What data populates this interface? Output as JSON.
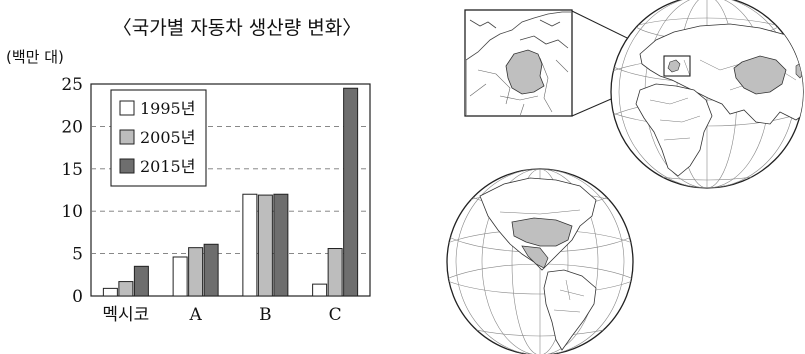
{
  "chart_data": {
    "type": "bar",
    "title": "〈국가별 자동차 생산량 변화〉",
    "ylabel": "(백만 대)",
    "xlabel": "",
    "ylim": [
      0,
      25
    ],
    "yticks": [
      0,
      5,
      10,
      15,
      20,
      25
    ],
    "grid": "dashed-horizontal",
    "legend_position": "top-left",
    "categories": [
      "멕시코",
      "A",
      "B",
      "C"
    ],
    "series": [
      {
        "name": "1995년",
        "color": "#ffffff",
        "values": [
          0.9,
          4.6,
          12.0,
          1.4
        ]
      },
      {
        "name": "2005년",
        "color": "#bdbdbd",
        "values": [
          1.7,
          5.7,
          11.9,
          5.6
        ]
      },
      {
        "name": "2015년",
        "color": "#6e6e6e",
        "values": [
          3.5,
          6.1,
          12.0,
          24.5
        ]
      }
    ]
  },
  "maps": {
    "globe_asia_europe_africa": {
      "highlighted_color": "#bfbfbf"
    },
    "globe_americas": {
      "highlighted_color": "#bfbfbf"
    },
    "inset_europe": {
      "highlighted_color": "#bfbfbf"
    }
  }
}
